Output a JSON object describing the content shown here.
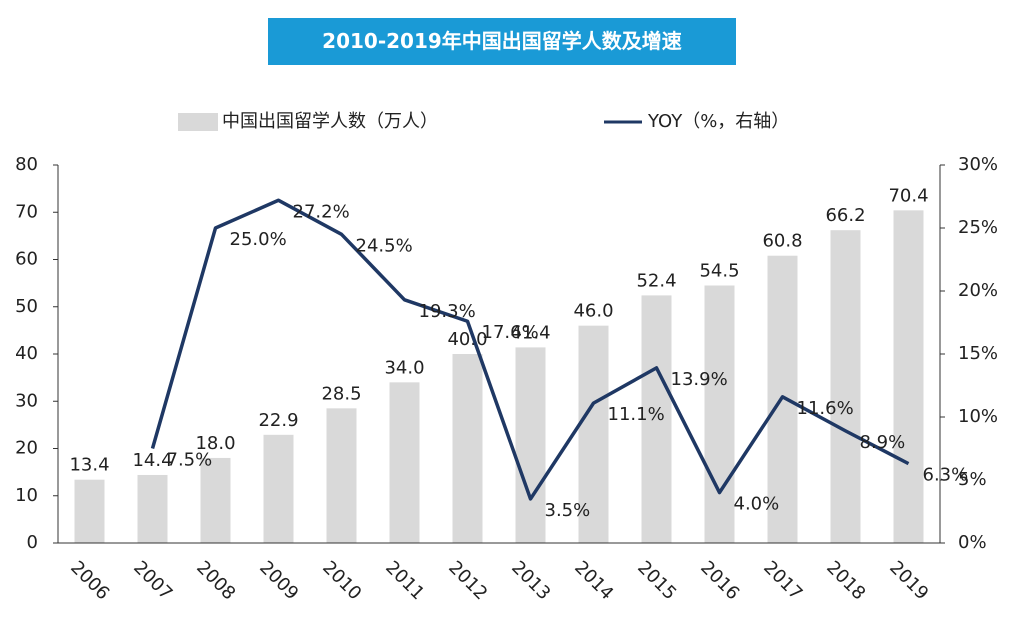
{
  "chart_data": {
    "type": "bar_line",
    "title": "2010-2019年中国出国留学人数及增速",
    "categories": [
      "2006",
      "2007",
      "2008",
      "2009",
      "2010",
      "2011",
      "2012",
      "2013",
      "2014",
      "2015",
      "2016",
      "2017",
      "2018",
      "2019"
    ],
    "series": [
      {
        "name": "中国出国留学人数（万人）",
        "type": "bar",
        "color": "#d9d9d9",
        "values": [
          13.4,
          14.4,
          18.0,
          22.9,
          28.5,
          34.0,
          40.0,
          41.4,
          46.0,
          52.4,
          54.5,
          60.8,
          66.2,
          70.4
        ],
        "value_labels": [
          "13.4",
          "14.4",
          "18.0",
          "22.9",
          "28.5",
          "34.0",
          "40.0",
          "41.4",
          "46.0",
          "52.4",
          "54.5",
          "60.8",
          "66.2",
          "70.4"
        ]
      },
      {
        "name": "YOY（%，右轴）",
        "type": "line",
        "axis": "y2",
        "color": "#1f3864",
        "values": [
          null,
          7.5,
          25.0,
          27.2,
          24.5,
          19.3,
          17.6,
          3.5,
          11.1,
          13.9,
          4.0,
          11.6,
          8.9,
          6.3
        ],
        "value_labels": [
          null,
          "7.5%",
          "25.0%",
          "27.2%",
          "24.5%",
          "19.3%",
          "17.6%",
          "3.5%",
          "11.1%",
          "13.9%",
          "4.0%",
          "11.6%",
          "8.9%",
          "6.3%"
        ]
      }
    ],
    "ylim": [
      0,
      80
    ],
    "yticks": [
      0,
      10,
      20,
      30,
      40,
      50,
      60,
      70,
      80
    ],
    "y2lim": [
      0,
      30
    ],
    "y2ticks": [
      {
        "value": 0,
        "label": "0%"
      },
      {
        "value": 5,
        "label": "5%"
      },
      {
        "value": 10,
        "label": "10%"
      },
      {
        "value": 15,
        "label": "15%"
      },
      {
        "value": 20,
        "label": "20%"
      },
      {
        "value": 25,
        "label": "25%"
      },
      {
        "value": 30,
        "label": "30%"
      }
    ],
    "grid": false
  }
}
